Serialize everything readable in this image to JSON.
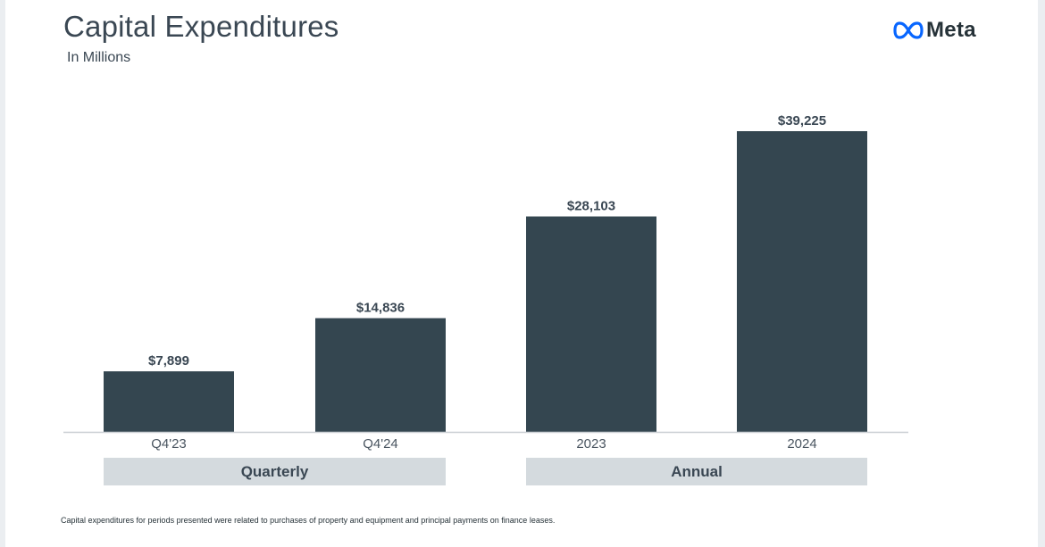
{
  "brand": {
    "logo_text": "Meta",
    "logo_icon": "meta-infinity-icon",
    "logo_color": "#0866ff"
  },
  "chart_data": {
    "type": "bar",
    "title": "Capital Expenditures",
    "subtitle": "In Millions",
    "categories": [
      "Q4'23",
      "Q4'24",
      "2023",
      "2024"
    ],
    "values": [
      7899,
      14836,
      28103,
      39225
    ],
    "value_labels": [
      "$7,899",
      "$14,836",
      "$28,103",
      "$39,225"
    ],
    "ylim": [
      0,
      39225
    ],
    "grid": false,
    "bar_color": "#344650",
    "groups": [
      {
        "label": "Quarterly",
        "categories": [
          "Q4'23",
          "Q4'24"
        ]
      },
      {
        "label": "Annual",
        "categories": [
          "2023",
          "2024"
        ]
      }
    ],
    "footnote": "Capital expenditures for periods presented were related to purchases of property and equipment and principal payments on finance leases."
  }
}
